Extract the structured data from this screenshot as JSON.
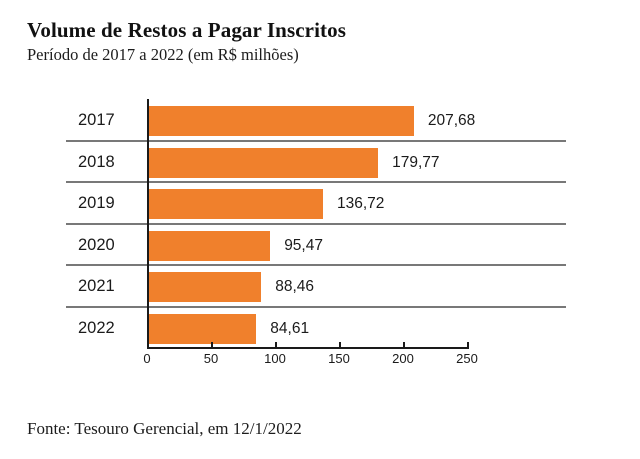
{
  "header": {
    "title": "Volume de Restos a Pagar Inscritos",
    "subtitle": "Período de 2017 a 2022 (em R$ milhões)"
  },
  "footer": {
    "source": "Fonte: Tesouro Gerencial, em 12/1/2022"
  },
  "colors": {
    "bar": "#F0802C",
    "separator": "#787878",
    "axis": "#1A1A1A",
    "text": "#1B1B1B"
  },
  "chart_data": {
    "type": "bar",
    "orientation": "horizontal",
    "title": "Volume de Restos a Pagar Inscritos",
    "subtitle": "Período de 2017 a 2022 (em R$ milhões)",
    "unit": "R$ milhões",
    "categories": [
      "2017",
      "2018",
      "2019",
      "2020",
      "2021",
      "2022"
    ],
    "values": [
      207.68,
      179.77,
      136.72,
      95.47,
      88.46,
      84.61
    ],
    "value_labels": [
      "207,68",
      "179,77",
      "136,72",
      "95,47",
      "88,46",
      "84,61"
    ],
    "xlim": [
      0,
      250
    ],
    "x_ticks": [
      0,
      50,
      100,
      150,
      200,
      250
    ],
    "x_tick_labels": [
      "0",
      "50",
      "100",
      "150",
      "200",
      "250"
    ],
    "legend": "none",
    "grid": "horizontal-row-separators",
    "bar_color": "#F0802C"
  }
}
